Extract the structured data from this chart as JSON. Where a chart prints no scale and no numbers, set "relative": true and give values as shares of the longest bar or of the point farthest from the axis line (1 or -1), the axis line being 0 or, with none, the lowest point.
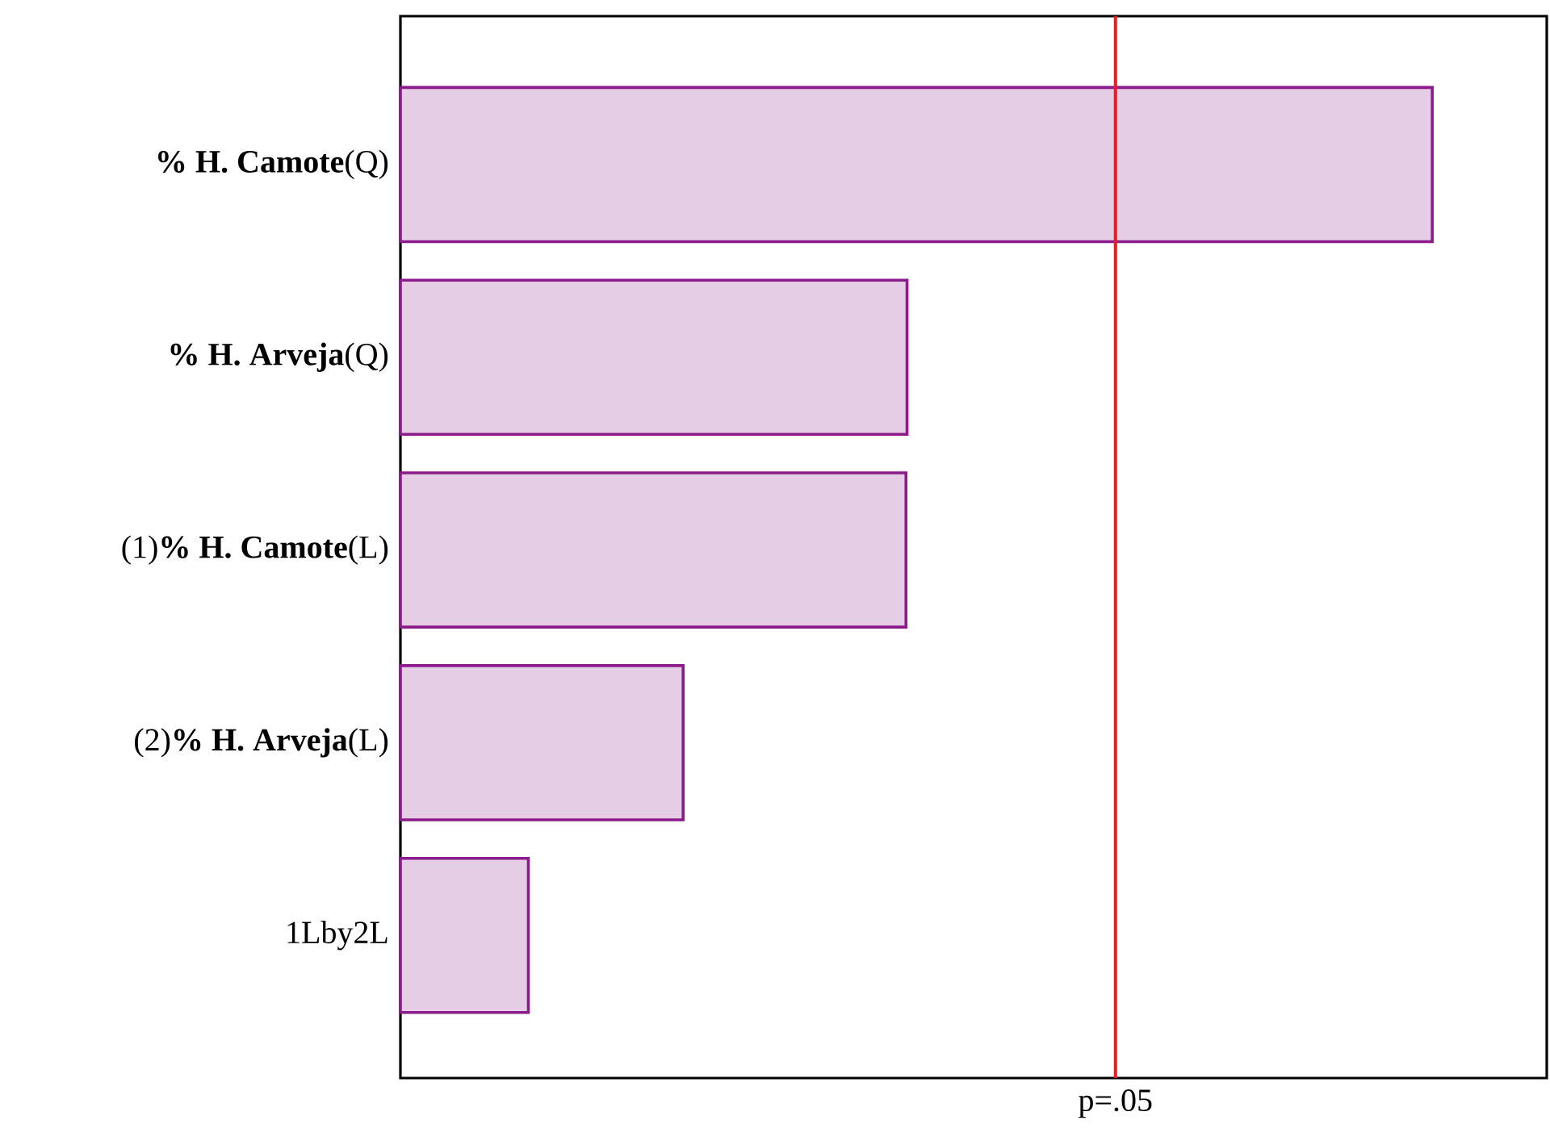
{
  "chart_data": {
    "type": "bar",
    "orientation": "horizontal",
    "relative": true,
    "categories": [
      "**% H. Camote**(Q)",
      "**% H. Arveja**(Q)",
      "(1)**% H. Camote**(L)",
      "(2)**% H. Arveja**(L)",
      "1Lby2L"
    ],
    "values": [
      1.0,
      0.491,
      0.49,
      0.274,
      0.124
    ],
    "color": "#8b1a8b",
    "ref_lines": [
      {
        "axis": "x",
        "value": 0.693,
        "label": "p=.05",
        "color": "#e02020"
      }
    ]
  }
}
